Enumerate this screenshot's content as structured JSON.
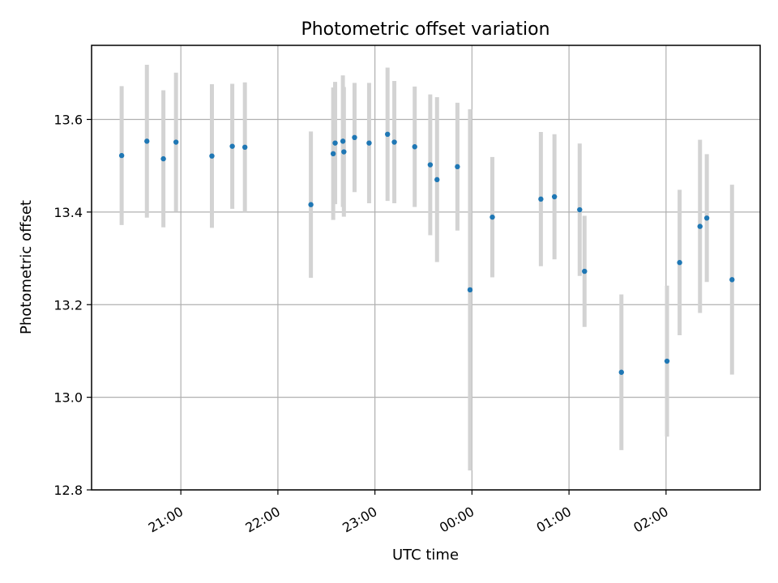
{
  "chart_data": {
    "type": "scatter",
    "title": "Photometric offset variation",
    "xlabel": "UTC time",
    "ylabel": "Photometric offset",
    "x_unit": "hours UTC (values past 24 are after midnight)",
    "xlim": [
      20.08,
      26.97
    ],
    "ylim": [
      12.8,
      13.76
    ],
    "x_ticks": [
      {
        "value": 21,
        "label": "21:00"
      },
      {
        "value": 22,
        "label": "22:00"
      },
      {
        "value": 23,
        "label": "23:00"
      },
      {
        "value": 24,
        "label": "00:00"
      },
      {
        "value": 25,
        "label": "01:00"
      },
      {
        "value": 26,
        "label": "02:00"
      }
    ],
    "y_ticks": [
      12.8,
      13.0,
      13.2,
      13.4,
      13.6
    ],
    "grid": true,
    "colors": {
      "points": "#1f77b4",
      "errorbars": "#d3d3d3"
    },
    "series": [
      {
        "points": [
          {
            "x": 20.39,
            "y": 13.522,
            "err": 0.15
          },
          {
            "x": 20.65,
            "y": 13.553,
            "err": 0.165
          },
          {
            "x": 20.82,
            "y": 13.515,
            "err": 0.148
          },
          {
            "x": 20.95,
            "y": 13.551,
            "err": 0.15
          },
          {
            "x": 21.32,
            "y": 13.521,
            "err": 0.155
          },
          {
            "x": 21.53,
            "y": 13.542,
            "err": 0.135
          },
          {
            "x": 21.66,
            "y": 13.54,
            "err": 0.14
          },
          {
            "x": 22.34,
            "y": 13.416,
            "err": 0.158
          },
          {
            "x": 22.57,
            "y": 13.526,
            "err": 0.143
          },
          {
            "x": 22.59,
            "y": 13.549,
            "err": 0.132
          },
          {
            "x": 22.67,
            "y": 13.553,
            "err": 0.142
          },
          {
            "x": 22.68,
            "y": 13.53,
            "err": 0.14
          },
          {
            "x": 22.79,
            "y": 13.561,
            "err": 0.118
          },
          {
            "x": 22.94,
            "y": 13.549,
            "err": 0.13
          },
          {
            "x": 23.13,
            "y": 13.568,
            "err": 0.144
          },
          {
            "x": 23.2,
            "y": 13.551,
            "err": 0.132
          },
          {
            "x": 23.41,
            "y": 13.541,
            "err": 0.13
          },
          {
            "x": 23.57,
            "y": 13.502,
            "err": 0.152
          },
          {
            "x": 23.64,
            "y": 13.47,
            "err": 0.178
          },
          {
            "x": 23.85,
            "y": 13.498,
            "err": 0.138
          },
          {
            "x": 23.98,
            "y": 13.232,
            "err": 0.39
          },
          {
            "x": 24.21,
            "y": 13.389,
            "err": 0.13
          },
          {
            "x": 24.71,
            "y": 13.428,
            "err": 0.145
          },
          {
            "x": 24.85,
            "y": 13.433,
            "err": 0.135
          },
          {
            "x": 25.11,
            "y": 13.405,
            "err": 0.143
          },
          {
            "x": 25.16,
            "y": 13.272,
            "err": 0.12
          },
          {
            "x": 25.54,
            "y": 13.054,
            "err": 0.168
          },
          {
            "x": 26.01,
            "y": 13.078,
            "err": 0.163
          },
          {
            "x": 26.14,
            "y": 13.291,
            "err": 0.157
          },
          {
            "x": 26.35,
            "y": 13.369,
            "err": 0.187
          },
          {
            "x": 26.42,
            "y": 13.387,
            "err": 0.138
          },
          {
            "x": 26.68,
            "y": 13.254,
            "err": 0.205
          }
        ]
      }
    ]
  }
}
